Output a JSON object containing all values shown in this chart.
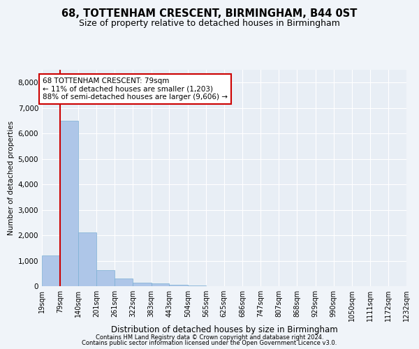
{
  "title": "68, TOTTENHAM CRESCENT, BIRMINGHAM, B44 0ST",
  "subtitle": "Size of property relative to detached houses in Birmingham",
  "xlabel": "Distribution of detached houses by size in Birmingham",
  "ylabel": "Number of detached properties",
  "footnote1": "Contains HM Land Registry data © Crown copyright and database right 2024.",
  "footnote2": "Contains public sector information licensed under the Open Government Licence v3.0.",
  "property_label": "68 TOTTENHAM CRESCENT: 79sqm",
  "annotation_line1": "← 11% of detached houses are smaller (1,203)",
  "annotation_line2": "88% of semi-detached houses are larger (9,606) →",
  "property_size_sqm": 79,
  "bar_edges": [
    19,
    79,
    140,
    201,
    261,
    322,
    383,
    443,
    504,
    565,
    625,
    686,
    747,
    807,
    868,
    929,
    990,
    1050,
    1111,
    1172,
    1232
  ],
  "bar_heights": [
    1200,
    6500,
    2100,
    620,
    310,
    150,
    100,
    60,
    30,
    10,
    5,
    0,
    0,
    0,
    0,
    0,
    0,
    0,
    0,
    0
  ],
  "bar_color": "#aec6e8",
  "bar_edge_color": "#7bafd4",
  "highlight_color": "#cc0000",
  "ylim": [
    0,
    8500
  ],
  "yticks": [
    0,
    1000,
    2000,
    3000,
    4000,
    5000,
    6000,
    7000,
    8000
  ],
  "bg_color": "#f0f4f9",
  "plot_bg_color": "#e8eef5",
  "grid_color": "#ffffff",
  "annotation_box_color": "#cc0000",
  "tick_label_fontsize": 7,
  "ytick_label_fontsize": 7.5,
  "title_fontsize": 10.5,
  "subtitle_fontsize": 9,
  "ylabel_fontsize": 7.5,
  "xlabel_fontsize": 8.5,
  "footnote_fontsize": 6
}
